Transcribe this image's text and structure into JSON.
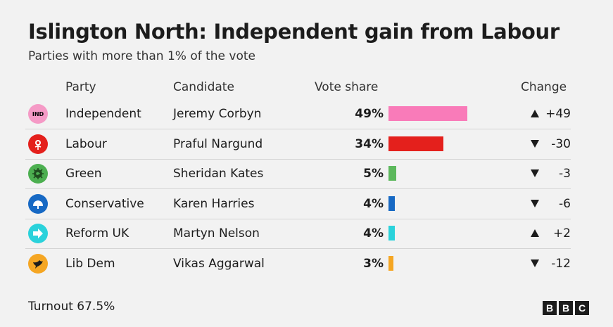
{
  "header": {
    "title": "Islington North: Independent gain from Labour",
    "subtitle": "Parties with more than 1% of the vote"
  },
  "columns": {
    "party": "Party",
    "candidate": "Candidate",
    "vote_share": "Vote share",
    "change": "Change"
  },
  "chart_data": {
    "type": "bar",
    "title": "Islington North: Independent gain from Labour",
    "subtitle": "Parties with more than 1% of the vote",
    "categories": [
      "Independent",
      "Labour",
      "Green",
      "Conservative",
      "Reform UK",
      "Lib Dem"
    ],
    "values": [
      49,
      34,
      5,
      4,
      4,
      3
    ],
    "xlabel": "",
    "ylabel": "Vote share",
    "ylim": [
      0,
      100
    ],
    "rows": [
      {
        "party": "Independent",
        "candidate": "Jeremy Corbyn",
        "share": 49,
        "share_label": "49%",
        "change": "+49",
        "direction": "up",
        "color": "#f97bb9",
        "logo_text": "IND",
        "logo_color": "#f59ac6",
        "icon": "ind-badge-icon"
      },
      {
        "party": "Labour",
        "candidate": "Praful Nargund",
        "share": 34,
        "share_label": "34%",
        "change": "-30",
        "direction": "down",
        "color": "#e4201c",
        "logo_text": "",
        "logo_color": "#e4201c",
        "icon": "labour-rose-icon"
      },
      {
        "party": "Green",
        "candidate": "Sheridan Kates",
        "share": 5,
        "share_label": "5%",
        "change": "-3",
        "direction": "down",
        "color": "#5cb85c",
        "logo_text": "",
        "logo_color": "#4caf50",
        "icon": "green-earth-icon"
      },
      {
        "party": "Conservative",
        "candidate": "Karen Harries",
        "share": 4,
        "share_label": "4%",
        "change": "-6",
        "direction": "down",
        "color": "#1769c4",
        "logo_text": "",
        "logo_color": "#1769c4",
        "icon": "conservative-tree-icon"
      },
      {
        "party": "Reform UK",
        "candidate": "Martyn Nelson",
        "share": 4,
        "share_label": "4%",
        "change": "+2",
        "direction": "up",
        "color": "#2ad2db",
        "logo_text": "",
        "logo_color": "#2ad2db",
        "icon": "reform-arrow-icon"
      },
      {
        "party": "Lib Dem",
        "candidate": "Vikas Aggarwal",
        "share": 3,
        "share_label": "3%",
        "change": "-12",
        "direction": "down",
        "color": "#f5a623",
        "logo_text": "",
        "logo_color": "#f5a623",
        "icon": "libdem-bird-icon"
      }
    ]
  },
  "footer": {
    "turnout": "Turnout 67.5%",
    "logo_letters": [
      "B",
      "B",
      "C"
    ]
  }
}
